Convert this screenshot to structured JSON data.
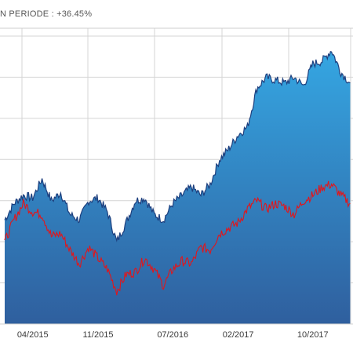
{
  "header": {
    "title": "N PERIODE : +36.45%"
  },
  "colors": {
    "area_top": "#35a6e2",
    "area_bottom": "#2f5f9e",
    "area_line": "#1d3f7e",
    "comparison_line": "#e3151a",
    "grid": "#d4d4d4",
    "frame": "#cfcfcf"
  },
  "chart_data": {
    "type": "area",
    "title": "N PERIODE : +36.45%",
    "xlabel": "",
    "ylabel": "",
    "x_tick_labels": [
      "04/2015",
      "11/2015",
      "07/2016",
      "02/2017",
      "10/2017"
    ],
    "grid": true,
    "y_axis_labels_visible": false,
    "series": [
      {
        "style": "area",
        "color": "#1d3f7e",
        "points": [
          [
            "01/2015",
            38
          ],
          [
            "02/2015",
            44
          ],
          [
            "03/2015",
            47
          ],
          [
            "04/2015",
            46
          ],
          [
            "05/2015",
            53
          ],
          [
            "06/2015",
            45
          ],
          [
            "07/2015",
            48
          ],
          [
            "08/2015",
            40
          ],
          [
            "09/2015",
            38
          ],
          [
            "10/2015",
            45
          ],
          [
            "11/2015",
            46
          ],
          [
            "12/2015",
            41
          ],
          [
            "01/2016",
            30
          ],
          [
            "02/2016",
            37
          ],
          [
            "03/2016",
            45
          ],
          [
            "04/2016",
            46
          ],
          [
            "05/2016",
            40
          ],
          [
            "06/2016",
            38
          ],
          [
            "07/2016",
            44
          ],
          [
            "08/2016",
            47
          ],
          [
            "09/2016",
            50
          ],
          [
            "10/2016",
            47
          ],
          [
            "11/2016",
            51
          ],
          [
            "12/2016",
            60
          ],
          [
            "01/2017",
            64
          ],
          [
            "02/2017",
            69
          ],
          [
            "03/2017",
            72
          ],
          [
            "04/2017",
            86
          ],
          [
            "05/2017",
            90
          ],
          [
            "06/2017",
            89
          ],
          [
            "07/2017",
            88
          ],
          [
            "08/2017",
            90
          ],
          [
            "09/2017",
            87
          ],
          [
            "10/2017",
            95
          ],
          [
            "11/2017",
            96
          ],
          [
            "12/2017",
            100
          ],
          [
            "01/2018",
            92
          ],
          [
            "02/2018",
            88
          ]
        ]
      },
      {
        "style": "line",
        "color": "#e3151a",
        "points": [
          [
            "01/2015",
            30
          ],
          [
            "02/2015",
            38
          ],
          [
            "03/2015",
            44
          ],
          [
            "04/2015",
            41
          ],
          [
            "05/2015",
            40
          ],
          [
            "06/2015",
            32
          ],
          [
            "07/2015",
            33
          ],
          [
            "08/2015",
            27
          ],
          [
            "09/2015",
            22
          ],
          [
            "10/2015",
            28
          ],
          [
            "11/2015",
            24
          ],
          [
            "12/2015",
            20
          ],
          [
            "01/2016",
            12
          ],
          [
            "02/2016",
            18
          ],
          [
            "03/2016",
            19
          ],
          [
            "04/2016",
            24
          ],
          [
            "05/2016",
            20
          ],
          [
            "06/2016",
            14
          ],
          [
            "07/2016",
            20
          ],
          [
            "08/2016",
            23
          ],
          [
            "09/2016",
            22
          ],
          [
            "10/2016",
            28
          ],
          [
            "11/2016",
            27
          ],
          [
            "12/2016",
            33
          ],
          [
            "01/2017",
            35
          ],
          [
            "02/2017",
            37
          ],
          [
            "03/2017",
            42
          ],
          [
            "04/2017",
            45
          ],
          [
            "05/2017",
            42
          ],
          [
            "06/2017",
            44
          ],
          [
            "07/2017",
            43
          ],
          [
            "08/2017",
            40
          ],
          [
            "09/2017",
            45
          ],
          [
            "10/2017",
            47
          ],
          [
            "11/2017",
            50
          ],
          [
            "12/2017",
            51
          ],
          [
            "01/2018",
            47
          ],
          [
            "02/2018",
            44
          ]
        ]
      }
    ]
  }
}
